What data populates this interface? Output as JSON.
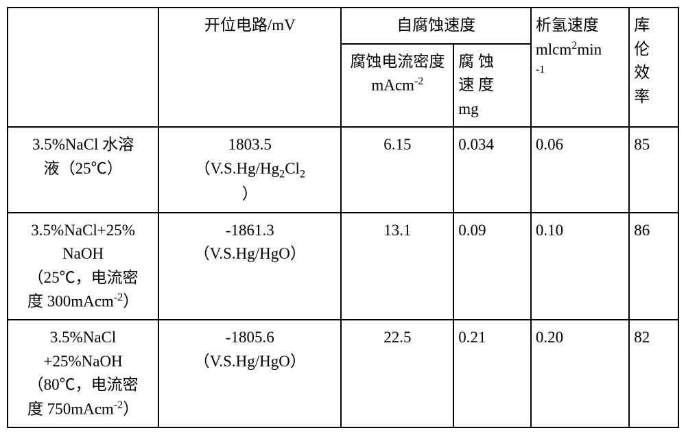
{
  "table": {
    "background_color": "#ffffff",
    "border_color": "#000000",
    "text_color": "#000000",
    "font_family": "SimSun",
    "font_size": 23,
    "headers": {
      "col1": "",
      "col2": "开位电路/mV",
      "col3_merged": "自腐蚀速度",
      "col3_sub": "腐蚀电流密度mAcm",
      "col3_sub_sup": "-2",
      "col4_sub_a": "腐 蚀",
      "col4_sub_b": "速 度",
      "col4_sub_c": "mg",
      "col5_a": "析氢速度",
      "col5_b": "mlcm",
      "col5_sup1": "2",
      "col5_c": "min",
      "col5_sup2": "-1",
      "col6_a": "库",
      "col6_b": "伦",
      "col6_c": "效",
      "col6_d": "率"
    },
    "rows": [
      {
        "cond_a": "3.5%NaCl 水溶",
        "cond_b": "液（25℃）",
        "ocp_val": "1803.5",
        "ocp_ref_a": "（V.S.Hg/Hg",
        "ocp_ref_sub1": "2",
        "ocp_ref_b": "Cl",
        "ocp_ref_sub2": "2",
        "ocp_ref_c": "）",
        "current_density": "6.15",
        "corr_rate": "0.034",
        "h2_rate": "0.06",
        "coulomb": "85"
      },
      {
        "cond_a": "3.5%NaCl+25%",
        "cond_b": "NaOH",
        "cond_c": "（25℃，电流密",
        "cond_d": "度 300mAcm",
        "cond_sup": "-2",
        "cond_e": "）",
        "ocp_val": "-1861.3",
        "ocp_ref": "（V.S.Hg/HgO）",
        "current_density": "13.1",
        "corr_rate": "0.09",
        "h2_rate": "0.10",
        "coulomb": "86"
      },
      {
        "cond_a": "3.5%NaCl",
        "cond_b": "+25%NaOH",
        "cond_c": "（80℃，电流密",
        "cond_d": "度 750mAcm",
        "cond_sup": "-2",
        "cond_e": "）",
        "ocp_val": "-1805.6",
        "ocp_ref": "（V.S.Hg/HgO）",
        "current_density": "22.5",
        "corr_rate": "0.21",
        "h2_rate": "0.20",
        "coulomb": "82"
      }
    ]
  }
}
